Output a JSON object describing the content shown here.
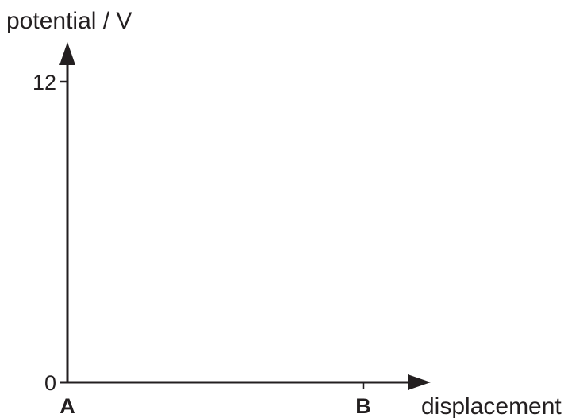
{
  "chart_data": {
    "type": "line",
    "title": "",
    "ylabel": "potential / V",
    "xlabel": "displacement",
    "ylim": [
      0,
      12
    ],
    "yticks": [
      {
        "value": 12,
        "label": "12"
      },
      {
        "value": 0,
        "label": "0"
      }
    ],
    "xticks": [
      {
        "label": "A"
      },
      {
        "label": "B"
      }
    ],
    "series": [],
    "grid": false,
    "colors": {
      "axis": "#231f20",
      "background": "#ffffff"
    }
  }
}
